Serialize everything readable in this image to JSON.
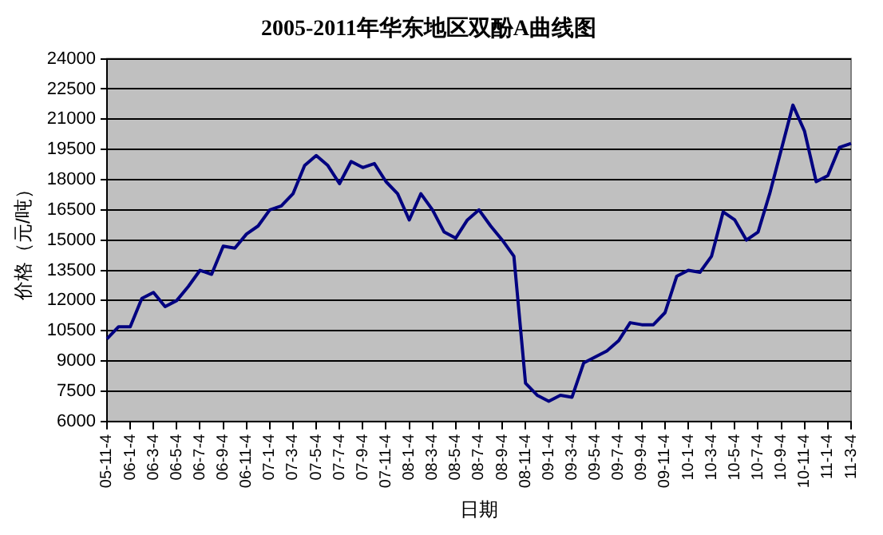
{
  "chart_data": {
    "type": "line",
    "title": "2005-2011年华东地区双酚A曲线图",
    "xlabel": "日期",
    "ylabel": "价格（元/吨）",
    "categories": [
      "05-11-4",
      null,
      "06-1-4",
      null,
      "06-3-4",
      null,
      "06-5-4",
      null,
      "06-7-4",
      null,
      "06-9-4",
      null,
      "06-11-4",
      null,
      "07-1-4",
      null,
      "07-3-4",
      null,
      "07-5-4",
      null,
      "07-7-4",
      null,
      "07-9-4",
      null,
      "07-11-4",
      null,
      "08-1-4",
      null,
      "08-3-4",
      null,
      "08-5-4",
      null,
      "08-7-4",
      null,
      "08-9-4",
      null,
      "08-11-4",
      null,
      "09-1-4",
      null,
      "09-3-4",
      null,
      "09-5-4",
      null,
      "09-7-4",
      null,
      "09-9-4",
      null,
      "09-11-4",
      null,
      "10-1-4",
      null,
      "10-3-4",
      null,
      "10-5-4",
      null,
      "10-7-4",
      null,
      "10-9-4",
      null,
      "10-11-4",
      null,
      "11-1-4",
      null,
      "11-3-4"
    ],
    "series": [
      {
        "color": "#000080",
        "values": [
          10100,
          10700,
          10700,
          12100,
          12400,
          11700,
          12000,
          12700,
          13500,
          13300,
          14700,
          14600,
          15300,
          15700,
          16500,
          16700,
          17300,
          18700,
          19200,
          18700,
          17800,
          18900,
          18600,
          18800,
          17900,
          17300,
          16000,
          17300,
          16500,
          15400,
          15100,
          16000,
          16500,
          15700,
          15000,
          14200,
          7900,
          7300,
          7000,
          7300,
          7200,
          8900,
          9200,
          9500,
          10000,
          10900,
          10800,
          10800,
          11400,
          13200,
          13500,
          13400,
          14200,
          16400,
          16000,
          15000,
          15400,
          17300,
          19500,
          21700,
          20400,
          17900,
          18200,
          19600,
          19800
        ]
      }
    ],
    "ylim": [
      6000,
      24000
    ],
    "yticks": [
      6000,
      7500,
      9000,
      10500,
      12000,
      13500,
      15000,
      16500,
      18000,
      19500,
      21000,
      22500,
      24000
    ],
    "grid": "y",
    "legend": false,
    "marker": "none",
    "line_style": "solid"
  }
}
